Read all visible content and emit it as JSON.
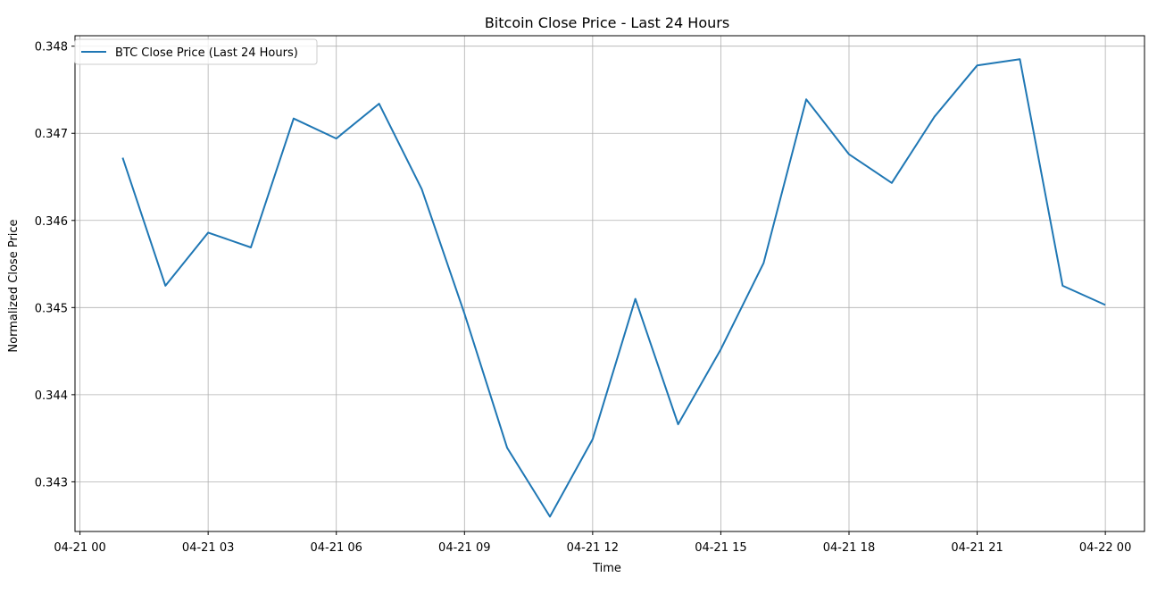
{
  "chart_data": {
    "type": "line",
    "title": "Bitcoin Close Price - Last 24 Hours",
    "xlabel": "Time",
    "ylabel": "Normalized Close Price",
    "x_ticks": [
      "04-21 00",
      "04-21 03",
      "04-21 06",
      "04-21 09",
      "04-21 12",
      "04-21 15",
      "04-21 18",
      "04-21 21",
      "04-22 00"
    ],
    "y_ticks": [
      "0.343",
      "0.344",
      "0.345",
      "0.346",
      "0.347",
      "0.348"
    ],
    "xlim": [
      "2025-04-20 23:53",
      "2025-04-22 00:55"
    ],
    "ylim": [
      0.34243,
      0.34812
    ],
    "grid": true,
    "legend_position": "top-left",
    "series": [
      {
        "name": "BTC Close Price (Last 24 Hours)",
        "color": "#1f77b4",
        "x": [
          "2025-04-21 01:00",
          "2025-04-21 02:00",
          "2025-04-21 03:00",
          "2025-04-21 04:00",
          "2025-04-21 05:00",
          "2025-04-21 06:00",
          "2025-04-21 07:00",
          "2025-04-21 08:00",
          "2025-04-21 09:00",
          "2025-04-21 10:00",
          "2025-04-21 11:00",
          "2025-04-21 12:00",
          "2025-04-21 13:00",
          "2025-04-21 14:00",
          "2025-04-21 15:00",
          "2025-04-21 16:00",
          "2025-04-21 17:00",
          "2025-04-21 18:00",
          "2025-04-21 19:00",
          "2025-04-21 20:00",
          "2025-04-21 21:00",
          "2025-04-21 22:00",
          "2025-04-21 23:00",
          "2025-04-22 00:00"
        ],
        "values": [
          0.34672,
          0.34525,
          0.34586,
          0.34569,
          0.34717,
          0.34694,
          0.34734,
          0.34636,
          0.34493,
          0.34339,
          0.3426,
          0.34349,
          0.3451,
          0.34366,
          0.34452,
          0.34551,
          0.34739,
          0.34676,
          0.34643,
          0.34719,
          0.34778,
          0.34785,
          0.34525,
          0.34503
        ]
      }
    ]
  }
}
